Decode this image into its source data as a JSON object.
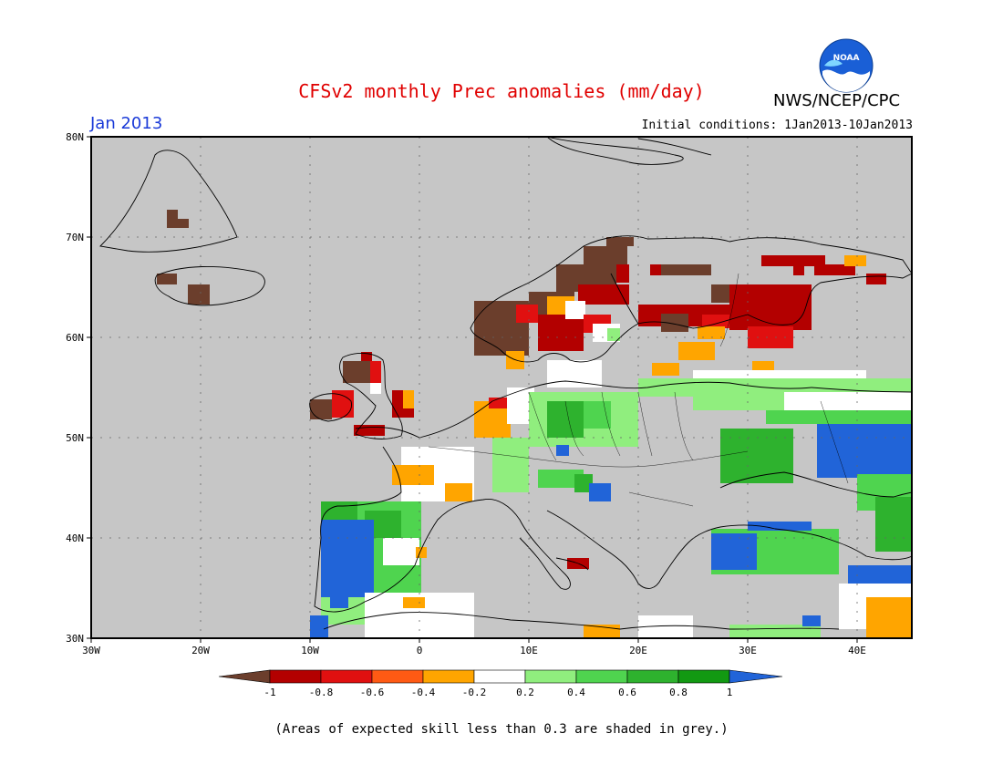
{
  "header": {
    "title": "CFSv2 monthly Prec anomalies (mm/day)",
    "agency": "NWS/NCEP/CPC",
    "period": "Jan 2013",
    "initial_conditions": "Initial conditions: 1Jan2013-10Jan2013",
    "logo_text": "NOAA"
  },
  "map": {
    "region": "Europe",
    "lon_range": [
      -30,
      45
    ],
    "lat_range": [
      30,
      80
    ],
    "lat_ticks": [
      "30N",
      "40N",
      "50N",
      "60N",
      "70N",
      "80N"
    ],
    "lon_ticks": [
      "30W",
      "20W",
      "10W",
      "0",
      "10E",
      "20E",
      "30E",
      "40E"
    ],
    "background_color": "#c6c6c6"
  },
  "colorbar": {
    "ticks": [
      "-1",
      "-0.8",
      "-0.6",
      "-0.4",
      "-0.2",
      "0.2",
      "0.4",
      "0.6",
      "0.8",
      "1"
    ],
    "colors": [
      "#6b3e2c",
      "#b30000",
      "#e01010",
      "#ff5a14",
      "#ffa500",
      "#ffffff",
      "#90ee7e",
      "#4fd44f",
      "#2eb22e",
      "#129912",
      "#2164d8"
    ]
  },
  "footnote": "(Areas of expected skill less than 0.3 are shaded in grey.)"
}
